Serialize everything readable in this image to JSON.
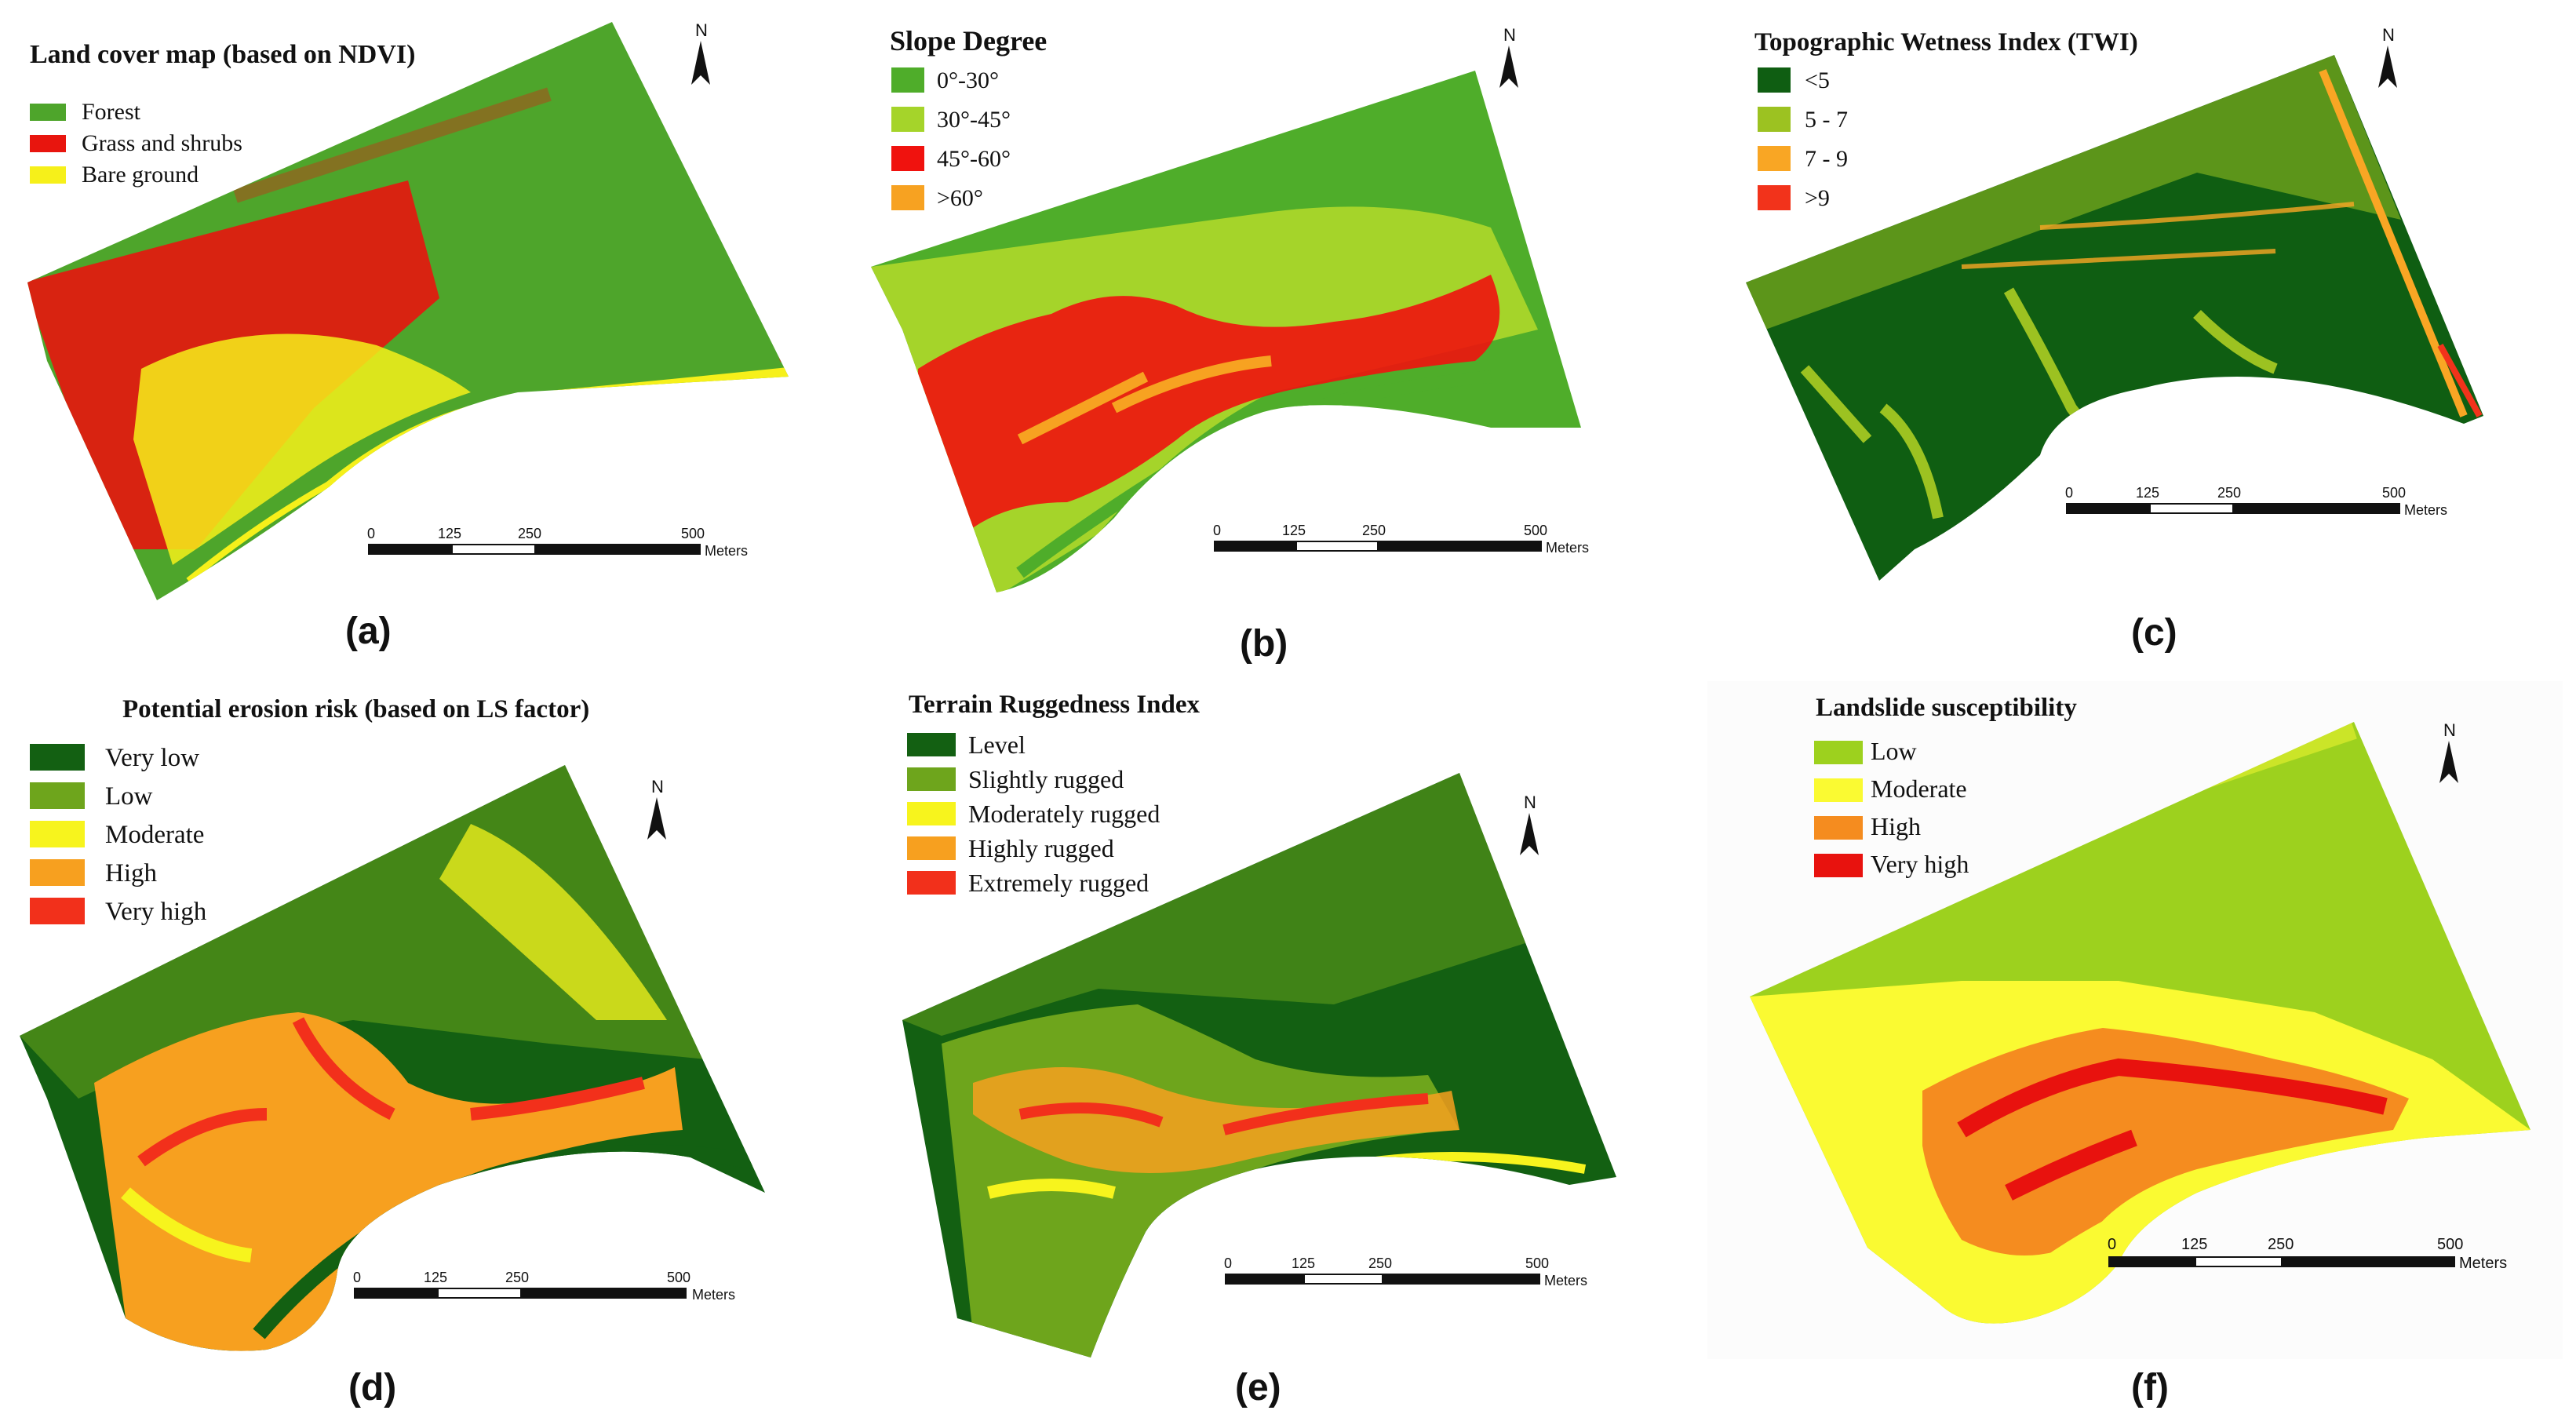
{
  "figure": {
    "panels": [
      {
        "id": "a",
        "title": "Land cover map (based on NDVI)",
        "caption": "(a)",
        "legend": [
          {
            "label": "Forest",
            "color": "#4ea52b"
          },
          {
            "label": "Grass and shrubs",
            "color": "#e8150e"
          },
          {
            "label": "Bare ground",
            "color": "#f6f01a"
          }
        ],
        "map_colors": {
          "base": "#4ea52b",
          "accent": "#e8150e",
          "highlight": "#f6f01a"
        }
      },
      {
        "id": "b",
        "title": "Slope Degree",
        "caption": "(b)",
        "legend": [
          {
            "label": "0°-30°",
            "color": "#4fad2a"
          },
          {
            "label": "30°-45°",
            "color": "#a5d42a"
          },
          {
            "label": "45°-60°",
            "color": "#f0120e"
          },
          {
            "label": ">60°",
            "color": "#f7a221"
          }
        ],
        "map_colors": {
          "base": "#4fad2a",
          "accent": "#a5d42a",
          "highlight": "#f0120e"
        }
      },
      {
        "id": "c",
        "title": "Topographic Wetness Index (TWI)",
        "caption": "(c)",
        "legend": [
          {
            "label": "<5",
            "color": "#0f5e12"
          },
          {
            "label": "5 - 7",
            "color": "#9cc221"
          },
          {
            "label": "7 - 9",
            "color": "#f9a624"
          },
          {
            "label": ">9",
            "color": "#f2331b"
          }
        ],
        "map_colors": {
          "base": "#0f5e12",
          "accent": "#9cc221",
          "highlight": "#f9a624"
        }
      },
      {
        "id": "d",
        "title": "Potential erosion risk (based on LS factor)",
        "caption": "(d)",
        "legend": [
          {
            "label": "Very low",
            "color": "#136012"
          },
          {
            "label": "Low",
            "color": "#6ea51c"
          },
          {
            "label": "Moderate",
            "color": "#f7f41d"
          },
          {
            "label": "High",
            "color": "#f7a01f"
          },
          {
            "label": "Very high",
            "color": "#f2301b"
          }
        ],
        "map_colors": {
          "base": "#136012",
          "accent": "#f7f41d",
          "highlight": "#f7a01f"
        }
      },
      {
        "id": "e",
        "title": "Terrain Ruggedness Index",
        "caption": "(e)",
        "legend": [
          {
            "label": "Level",
            "color": "#136012"
          },
          {
            "label": "Slightly rugged",
            "color": "#6ea51c"
          },
          {
            "label": "Moderately rugged",
            "color": "#f7f41d"
          },
          {
            "label": "Highly rugged",
            "color": "#f7a01f"
          },
          {
            "label": "Extremely rugged",
            "color": "#f2301b"
          }
        ],
        "map_colors": {
          "base": "#136012",
          "accent": "#6ea51c",
          "highlight": "#f7a01f"
        }
      },
      {
        "id": "f",
        "title": "Landslide susceptibility",
        "caption": "(f)",
        "legend": [
          {
            "label": "Low",
            "color": "#9dd11e"
          },
          {
            "label": "Moderate",
            "color": "#fafa32"
          },
          {
            "label": "High",
            "color": "#f58c1f"
          },
          {
            "label": "Very high",
            "color": "#e8120e"
          }
        ],
        "map_colors": {
          "base": "#9dd11e",
          "accent": "#fafa32",
          "highlight": "#f58c1f"
        }
      }
    ],
    "scale_bar": {
      "ticks": [
        "0",
        "125",
        "250",
        "500"
      ],
      "unit": "Meters"
    },
    "north_label": "N"
  }
}
